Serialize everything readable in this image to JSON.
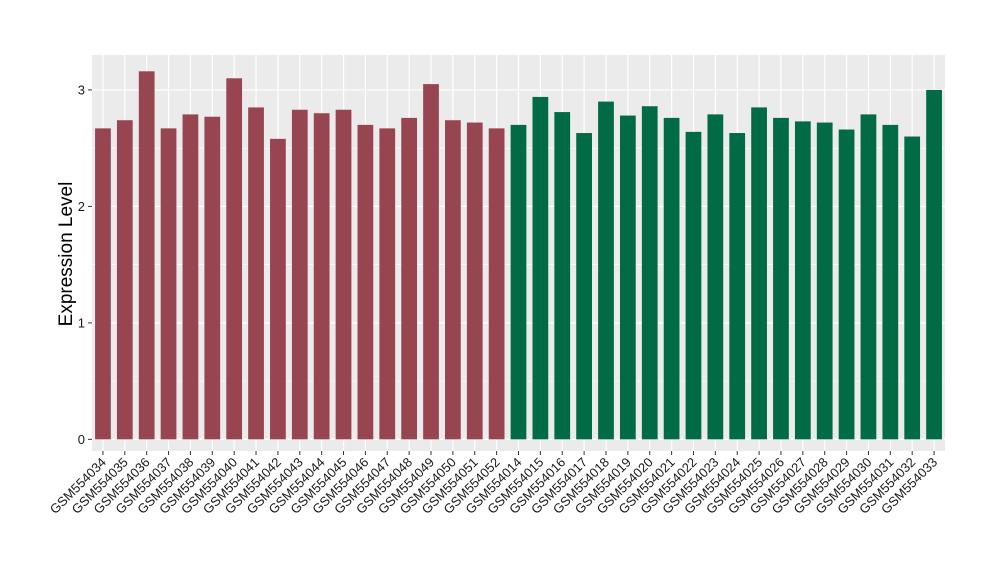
{
  "chart_data": {
    "type": "bar",
    "title": "",
    "xlabel": "",
    "ylabel": "Expression Level",
    "ylim": [
      -0.1,
      3.3
    ],
    "yticks": [
      0,
      1,
      2,
      3
    ],
    "grid": true,
    "legend": "none",
    "colors": {
      "group1": "#984552",
      "group2": "#006b44",
      "panel": "#ebebeb",
      "grid": "#ffffff"
    },
    "categories": [
      "GSM554034",
      "GSM554035",
      "GSM554036",
      "GSM554037",
      "GSM554038",
      "GSM554039",
      "GSM554040",
      "GSM554041",
      "GSM554042",
      "GSM554043",
      "GSM554044",
      "GSM554045",
      "GSM554046",
      "GSM554047",
      "GSM554048",
      "GSM554049",
      "GSM554050",
      "GSM554051",
      "GSM554052",
      "GSM554014",
      "GSM554015",
      "GSM554016",
      "GSM554017",
      "GSM554018",
      "GSM554019",
      "GSM554020",
      "GSM554021",
      "GSM554022",
      "GSM554023",
      "GSM554024",
      "GSM554025",
      "GSM554026",
      "GSM554027",
      "GSM554028",
      "GSM554029",
      "GSM554030",
      "GSM554031",
      "GSM554032",
      "GSM554033"
    ],
    "values": [
      2.67,
      2.74,
      3.16,
      2.67,
      2.79,
      2.77,
      3.1,
      2.85,
      2.58,
      2.83,
      2.8,
      2.83,
      2.7,
      2.67,
      2.76,
      3.05,
      2.74,
      2.72,
      2.67,
      2.7,
      2.94,
      2.81,
      2.63,
      2.9,
      2.78,
      2.86,
      2.76,
      2.64,
      2.79,
      2.63,
      2.85,
      2.76,
      2.73,
      2.72,
      2.66,
      2.79,
      2.7,
      2.6,
      3.0
    ],
    "groups": [
      1,
      1,
      1,
      1,
      1,
      1,
      1,
      1,
      1,
      1,
      1,
      1,
      1,
      1,
      1,
      1,
      1,
      1,
      1,
      2,
      2,
      2,
      2,
      2,
      2,
      2,
      2,
      2,
      2,
      2,
      2,
      2,
      2,
      2,
      2,
      2,
      2,
      2,
      2
    ]
  }
}
